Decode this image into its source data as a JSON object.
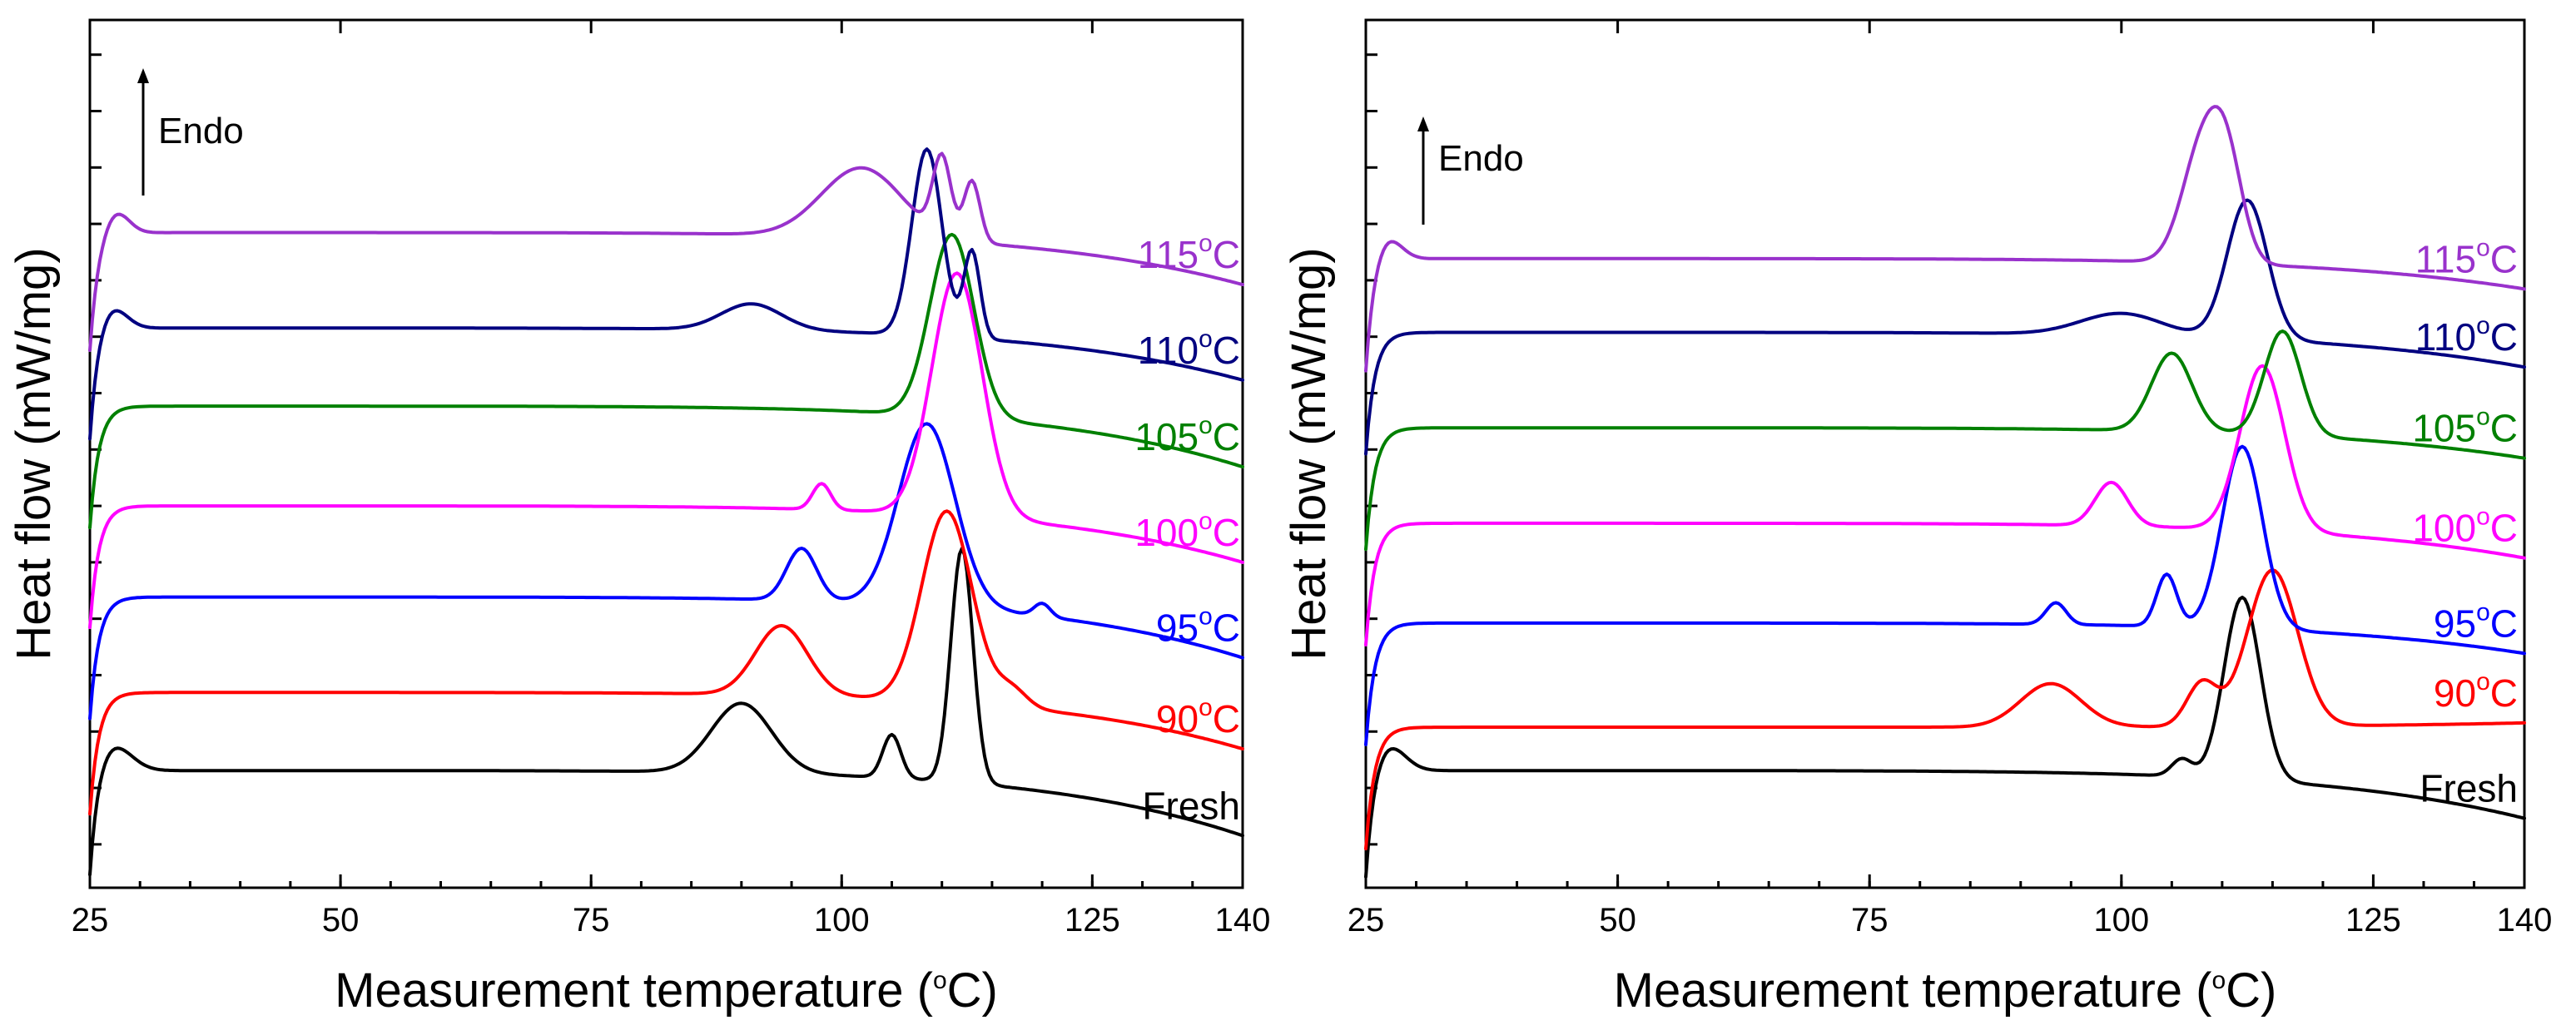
{
  "chart_data": [
    {
      "type": "line",
      "panel": "left",
      "xlabel": "Measurement temperature",
      "xlabel_unit_open": " (",
      "xlabel_unit_sup": "o",
      "xlabel_unit_close": "C)",
      "ylabel": "Heat flow (mW/mg)",
      "xlim": [
        25,
        140
      ],
      "ylim": [
        0,
        100
      ],
      "x_ticks": [
        25,
        50,
        75,
        100,
        125,
        140
      ],
      "x_tick_labels": [
        "25",
        "50",
        "75",
        "100",
        "125",
        "140"
      ],
      "annotation": "Endo",
      "series": [
        {
          "name": "Fresh",
          "label_main": "Fresh",
          "label_sup": "",
          "label_tail": "",
          "color": "#000000",
          "baseline": 13.5,
          "end": 6.0,
          "peaks": [
            [
              27,
              1.9,
              3.5
            ],
            [
              90,
              3,
              8
            ],
            [
              105,
              0.9,
              5
            ],
            [
              112,
              1.1,
              27
            ]
          ]
        },
        {
          "name": "90°C",
          "label_main": "90",
          "label_sup": "o",
          "label_tail": "C",
          "color": "#ff0000",
          "baseline": 22.5,
          "end": 16.0,
          "peaks": [
            [
              94,
              2.6,
              8
            ],
            [
              110.5,
              2.5,
              22
            ],
            [
              117,
              1.5,
              2
            ]
          ]
        },
        {
          "name": "95°C",
          "label_main": "95",
          "label_sup": "o",
          "label_tail": "C",
          "color": "#0000ff",
          "baseline": 33.5,
          "end": 26.5,
          "peaks": [
            [
              96,
              1.5,
              6
            ],
            [
              108.5,
              2.8,
              21
            ],
            [
              120,
              0.8,
              1.5
            ]
          ]
        },
        {
          "name": "100°C",
          "label_main": "100",
          "label_sup": "o",
          "label_tail": "C",
          "color": "#ff00ff",
          "baseline": 44.0,
          "end": 37.5,
          "peaks": [
            [
              98,
              0.9,
              3
            ],
            [
              111.5,
              2.5,
              28
            ]
          ]
        },
        {
          "name": "105°C",
          "label_main": "105",
          "label_sup": "o",
          "label_tail": "C",
          "color": "#008000",
          "baseline": 55.5,
          "end": 48.5,
          "peaks": [
            [
              111,
              2.2,
              21
            ]
          ]
        },
        {
          "name": "110°C",
          "label_main": "110",
          "label_sup": "o",
          "label_tail": "C",
          "color": "#000080",
          "baseline": 64.5,
          "end": 58.5,
          "peaks": [
            [
              27,
              1.5,
              3
            ],
            [
              91,
              3,
              3
            ],
            [
              108.5,
              1.5,
              21.5
            ],
            [
              113,
              0.8,
              10
            ]
          ]
        },
        {
          "name": "115°C",
          "label_main": "115",
          "label_sup": "o",
          "label_tail": "C",
          "color": "#9932cc",
          "baseline": 75.5,
          "end": 69.5,
          "peaks": [
            [
              27.5,
              1.3,
              2.8
            ],
            [
              102,
              4,
              8
            ],
            [
              110,
              0.9,
              9
            ],
            [
              113,
              0.8,
              7
            ]
          ]
        }
      ]
    },
    {
      "type": "line",
      "panel": "right",
      "xlabel": "Measurement temperature",
      "xlabel_unit_open": " (",
      "xlabel_unit_sup": "o",
      "xlabel_unit_close": "C)",
      "ylabel": "Heat flow (mW/mg)",
      "xlim": [
        25,
        140
      ],
      "ylim": [
        0,
        100
      ],
      "x_ticks": [
        25,
        50,
        75,
        100,
        125,
        140
      ],
      "x_tick_labels": [
        "25",
        "50",
        "75",
        "100",
        "125",
        "140"
      ],
      "annotation": "Endo",
      "series": [
        {
          "name": "Fresh",
          "label_main": "Fresh",
          "label_sup": "",
          "label_tail": "",
          "color": "#000000",
          "baseline": 13.5,
          "end": 8.0,
          "peaks": [
            [
              27,
              1.7,
              3.5
            ],
            [
              106,
              1.0,
              2
            ],
            [
              112,
              1.8,
              21
            ]
          ]
        },
        {
          "name": "90°C",
          "label_main": "90",
          "label_sup": "o",
          "label_tail": "C",
          "color": "#ff0000",
          "baseline": 18.5,
          "end": 19.0,
          "peaks": [
            [
              93,
              3,
              5
            ],
            [
              108,
              1.5,
              5
            ],
            [
              115,
              2.5,
              18
            ]
          ]
        },
        {
          "name": "95°C",
          "label_main": "95",
          "label_sup": "o",
          "label_tail": "C",
          "color": "#0000ff",
          "baseline": 30.5,
          "end": 27.0,
          "peaks": [
            [
              93.5,
              1.0,
              2.5
            ],
            [
              104.5,
              1.0,
              6
            ],
            [
              112,
              2.0,
              21
            ]
          ]
        },
        {
          "name": "100°C",
          "label_main": "100",
          "label_sup": "o",
          "label_tail": "C",
          "color": "#ff00ff",
          "baseline": 42.0,
          "end": 38.0,
          "peaks": [
            [
              99,
              1.6,
              5
            ],
            [
              114,
              2.2,
              19
            ]
          ]
        },
        {
          "name": "105°C",
          "label_main": "105",
          "label_sup": "o",
          "label_tail": "C",
          "color": "#008000",
          "baseline": 53.0,
          "end": 49.5,
          "peaks": [
            [
              105,
              2.0,
              9
            ],
            [
              116,
              1.8,
              12
            ]
          ]
        },
        {
          "name": "110°C",
          "label_main": "110",
          "label_sup": "o",
          "label_tail": "C",
          "color": "#000080",
          "baseline": 64.0,
          "end": 60.0,
          "peaks": [
            [
              100,
              4,
              2.5
            ],
            [
              112.5,
              2.0,
              16
            ]
          ]
        },
        {
          "name": "115°C",
          "label_main": "115",
          "label_sup": "o",
          "label_tail": "C",
          "color": "#9932cc",
          "baseline": 72.5,
          "end": 69.0,
          "peaks": [
            [
              27,
              1.4,
              3
            ],
            [
              108,
              2,
              13
            ],
            [
              110.5,
              1.6,
              10
            ]
          ]
        }
      ]
    }
  ]
}
